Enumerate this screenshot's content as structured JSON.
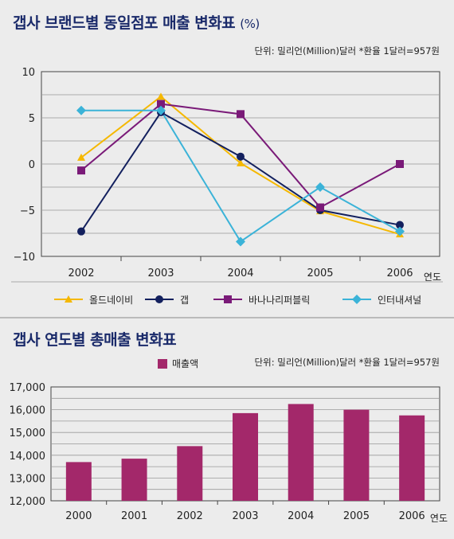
{
  "colors": {
    "line_series": [
      "#f5b800",
      "#13205e",
      "#7a1a78",
      "#3bb3d8"
    ],
    "bar": "#a3286a",
    "grid": "#999999"
  },
  "markers": [
    "triangle",
    "circle",
    "square",
    "diamond"
  ],
  "top": {
    "title": "갭사 브랜드별 동일점포 매출 변화표",
    "title_suffix": "(%)",
    "unit_note": "단위: 밀리언(Million)달러  *환율 1달러=957원"
  },
  "bottom": {
    "title": "갭사 연도별 총매출 변화표",
    "unit_note": "단위: 밀리언(Million)달러  *환율 1달러=957원"
  },
  "chart_data": [
    {
      "type": "line",
      "title": "갭사 브랜드별 동일점포 매출 변화표 (%)",
      "x": [
        "2002",
        "2003",
        "2004",
        "2005",
        "2006"
      ],
      "xlabel": "연도",
      "ylabel": "",
      "ylim": [
        -10,
        10
      ],
      "yticks": [
        10,
        5,
        0,
        -5,
        -10
      ],
      "grid": true,
      "legend_position": "bottom",
      "series": [
        {
          "name": "올드네이비",
          "values": [
            0.7,
            7.3,
            0.1,
            -5.1,
            -7.6
          ]
        },
        {
          "name": "갭",
          "values": [
            -7.3,
            5.6,
            0.8,
            -5.0,
            -6.6
          ]
        },
        {
          "name": "바나나리퍼블릭",
          "values": [
            -0.7,
            6.5,
            5.4,
            -4.7,
            0.0
          ]
        },
        {
          "name": "인터내셔널",
          "values": [
            5.8,
            5.8,
            -8.4,
            -2.5,
            -7.3
          ]
        }
      ]
    },
    {
      "type": "bar",
      "title": "갭사 연도별 총매출 변화표",
      "categories": [
        "2000",
        "2001",
        "2002",
        "2003",
        "2004",
        "2005",
        "2006"
      ],
      "xlabel": "연도",
      "ylabel": "",
      "ylim": [
        12000,
        17000
      ],
      "yticks": [
        "17,000",
        "16,000",
        "15,000",
        "14,000",
        "13,000",
        "12,000"
      ],
      "grid": true,
      "legend_position": "top-right",
      "series": [
        {
          "name": "매출액",
          "values": [
            13700,
            13850,
            14400,
            15850,
            16250,
            16000,
            15750
          ]
        }
      ]
    }
  ]
}
